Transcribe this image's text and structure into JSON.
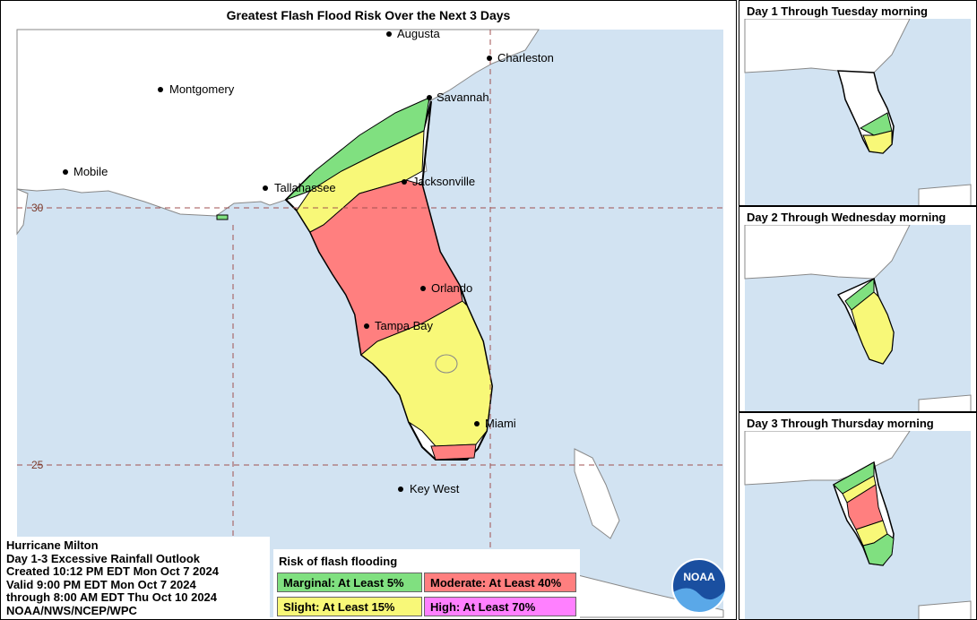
{
  "main": {
    "title": "Greatest Flash Flood Risk Over the Next 3 Days",
    "cities": [
      "Augusta",
      "Charleston",
      "Montgomery",
      "Savannah",
      "Mobile",
      "Tallahassee",
      "Jacksonville",
      "Orlando",
      "Tampa Bay",
      "Miami",
      "Key West"
    ],
    "lat_labels": [
      "30",
      "25"
    ]
  },
  "info": {
    "lines": [
      "Hurricane Milton",
      "Day 1-3 Excessive Rainfall Outlook",
      "Created 10:12 PM EDT Mon Oct 7 2024",
      "Valid 9:00 PM EDT Mon Oct 7 2024",
      "through 8:00 AM EDT Thu Oct 10 2024",
      "NOAA/NWS/NCEP/WPC"
    ]
  },
  "legend": {
    "title": "Risk of flash flooding",
    "items": [
      {
        "label": "Marginal: At Least 5%",
        "color": "#80e080"
      },
      {
        "label": "Moderate: At Least 40%",
        "color": "#ff7f7f"
      },
      {
        "label": "Slight: At Least 15%",
        "color": "#f8f878"
      },
      {
        "label": "High: At Least 70%",
        "color": "#ff80ff"
      }
    ]
  },
  "logo": {
    "text": "NOAA"
  },
  "insets": [
    {
      "title": "Day 1 Through Tuesday morning"
    },
    {
      "title": "Day 2 Through Wednesday morning"
    },
    {
      "title": "Day 3 Through Thursday morning"
    }
  ],
  "colors": {
    "ocean": "#d2e3f2",
    "land": "#ffffff",
    "marginal": "#80e080",
    "slight": "#f8f878",
    "moderate": "#ff7f7f",
    "high": "#ff80ff"
  }
}
